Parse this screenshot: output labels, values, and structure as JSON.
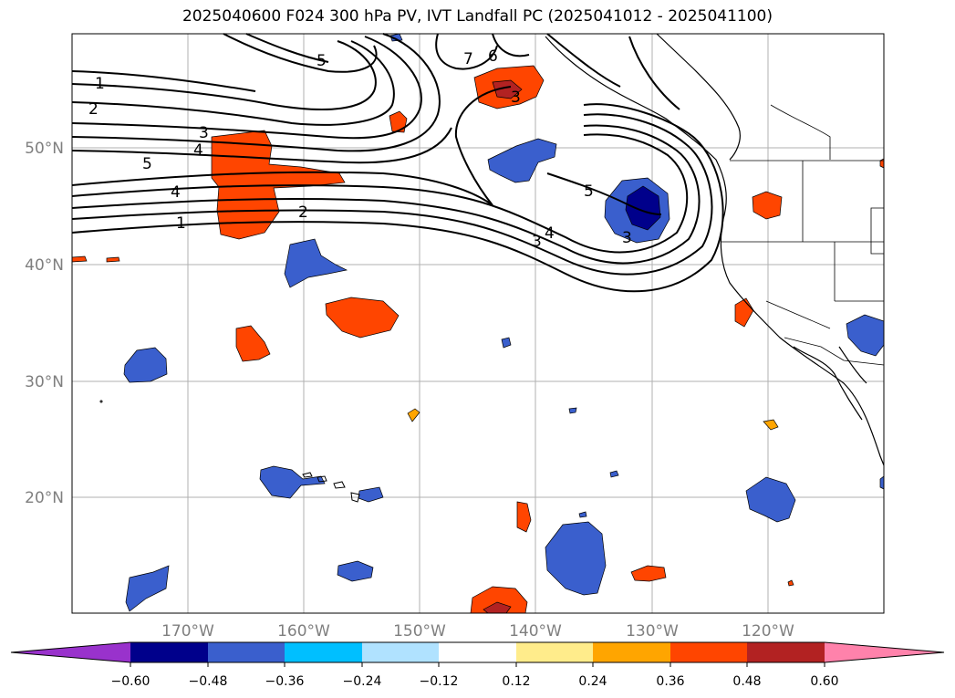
{
  "title": "2025040600 F024 300 hPa PV, IVT Landfall PC (2025041012 - 2025041100)",
  "axes": {
    "lat_ticks": [
      "50°N",
      "40°N",
      "30°N",
      "20°N"
    ],
    "lon_ticks": [
      "170°W",
      "160°W",
      "150°W",
      "140°W",
      "130°W",
      "120°W"
    ]
  },
  "pv_contour_labels": [
    "1",
    "2",
    "3",
    "4",
    "5",
    "6",
    "7"
  ],
  "colorbar": {
    "ticks": [
      "−0.60",
      "−0.48",
      "−0.36",
      "−0.24",
      "−0.12",
      "0.12",
      "0.24",
      "0.36",
      "0.48",
      "0.60"
    ],
    "colors": [
      "#9932cc",
      "#00008b",
      "#3a5fcd",
      "#00bfff",
      "#b0e2ff",
      "#ffffff",
      "#ffec8b",
      "#ffa500",
      "#ff4500",
      "#b22222",
      "#ff82ab"
    ]
  }
}
